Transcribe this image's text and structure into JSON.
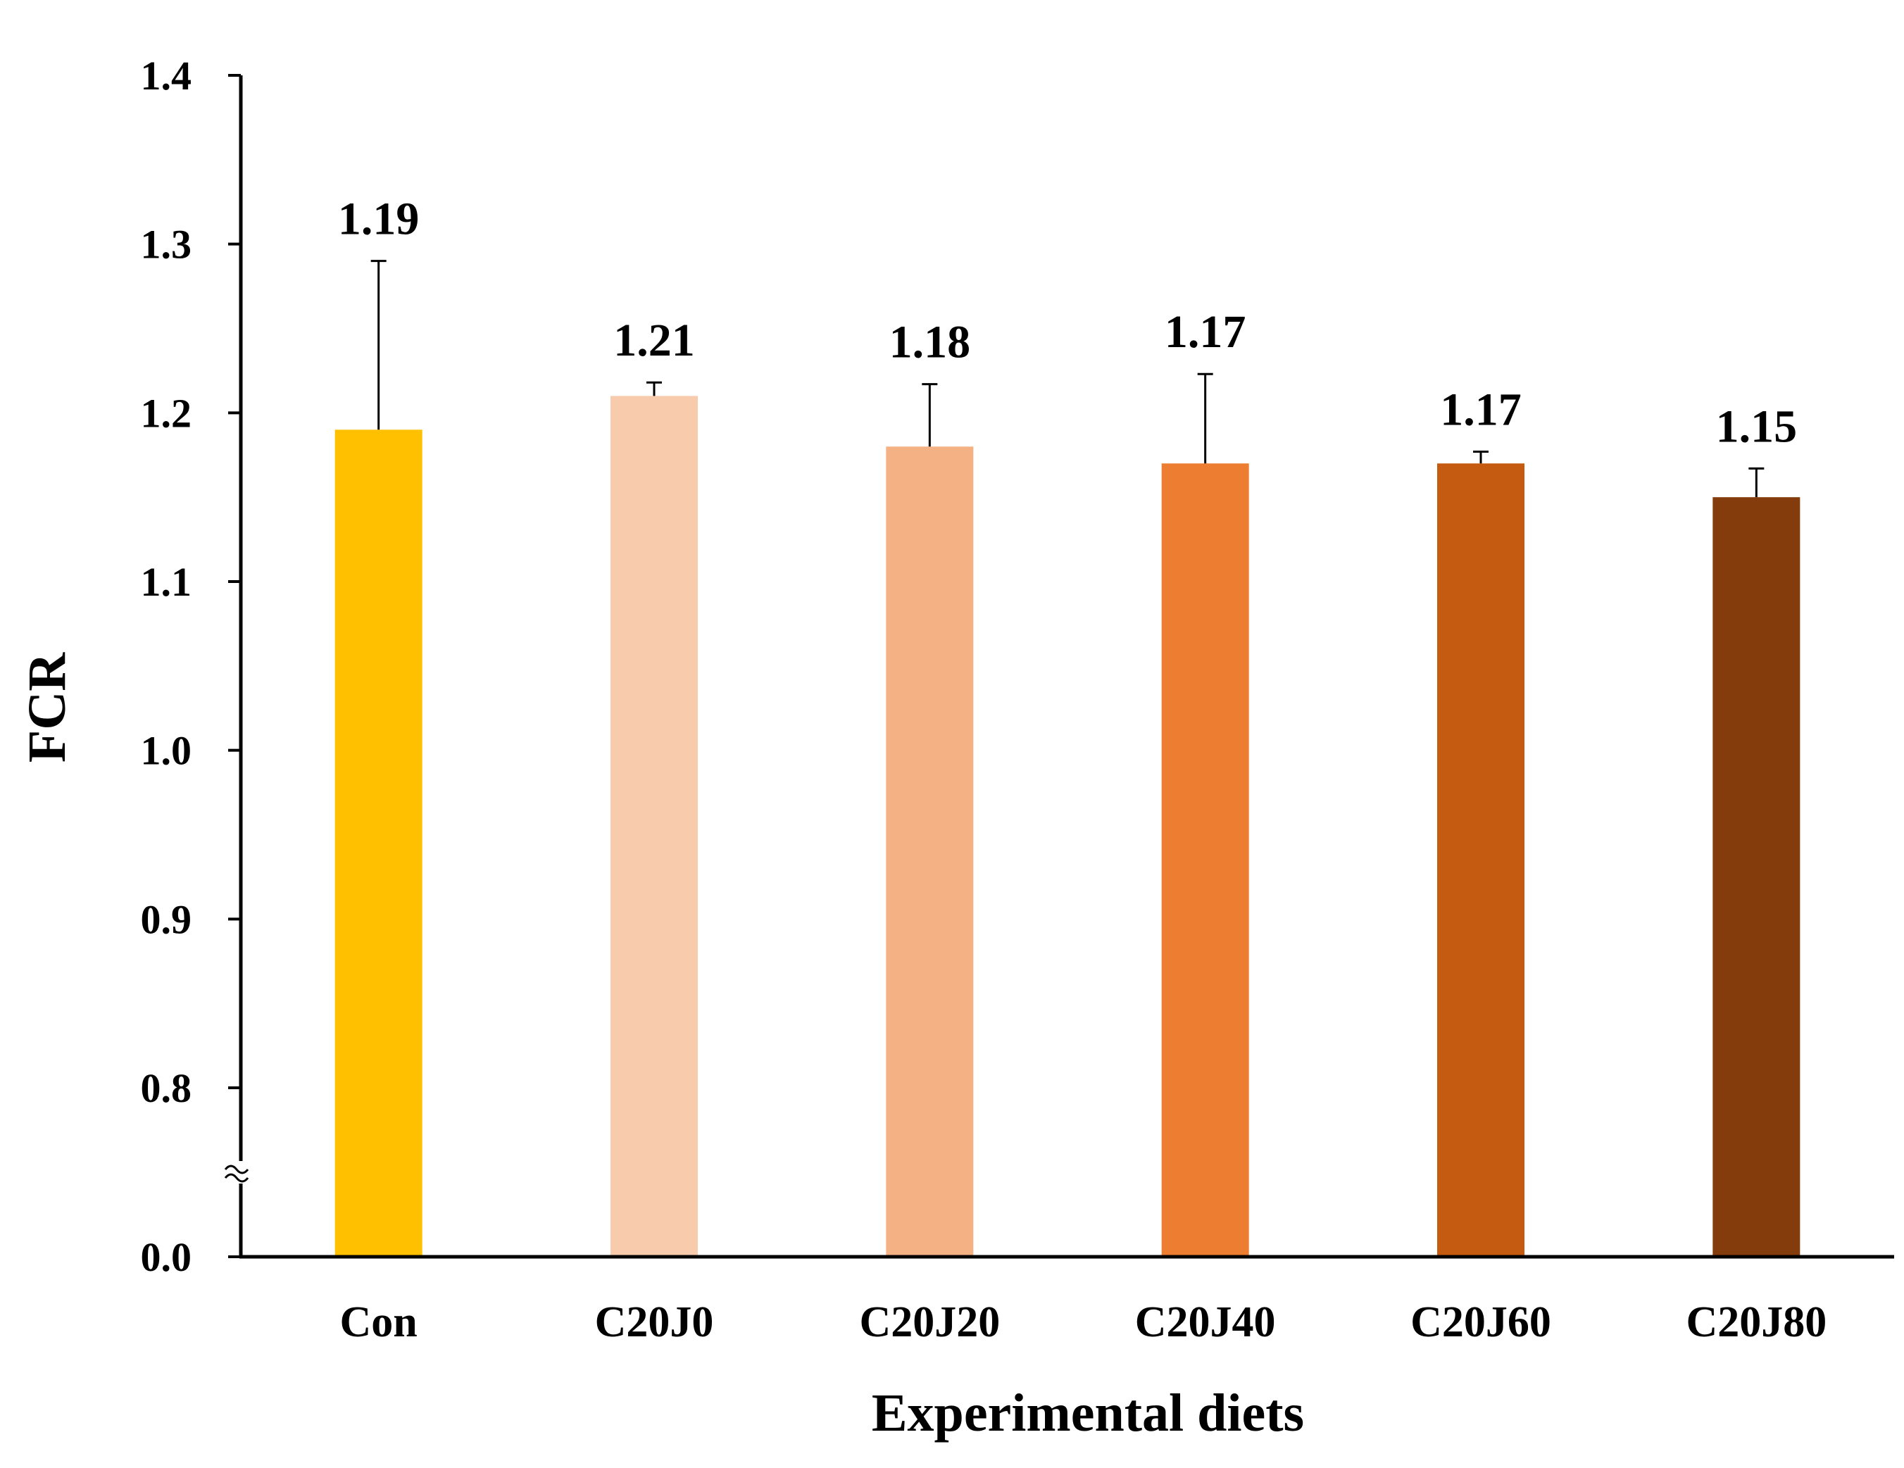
{
  "chart_data": {
    "type": "bar",
    "title": "",
    "xlabel": "Experimental diets",
    "ylabel": "FCR",
    "categories": [
      "Con",
      "C20J0",
      "C20J20",
      "C20J40",
      "C20J60",
      "C20J80"
    ],
    "values": [
      1.19,
      1.21,
      1.18,
      1.17,
      1.17,
      1.15
    ],
    "value_labels": [
      "1.19",
      "1.21",
      "1.18",
      "1.17",
      "1.17",
      "1.15"
    ],
    "error_upper": [
      0.1,
      0.008,
      0.037,
      0.053,
      0.007,
      0.017
    ],
    "colors": [
      "#FFC000",
      "#F8CBAD",
      "#F4B183",
      "#ED7D31",
      "#C55A11",
      "#843C0C"
    ],
    "ylim": [
      0.0,
      1.4
    ],
    "axis_break": {
      "from": 0.0,
      "to": 0.75
    },
    "yticks": [
      0.0,
      0.8,
      0.9,
      1.0,
      1.1,
      1.2,
      1.3,
      1.4
    ],
    "ytick_labels": [
      "0.0",
      "0.8",
      "0.9",
      "1.0",
      "1.1",
      "1.2",
      "1.3",
      "1.4"
    ],
    "grid": false,
    "legend": "none"
  }
}
